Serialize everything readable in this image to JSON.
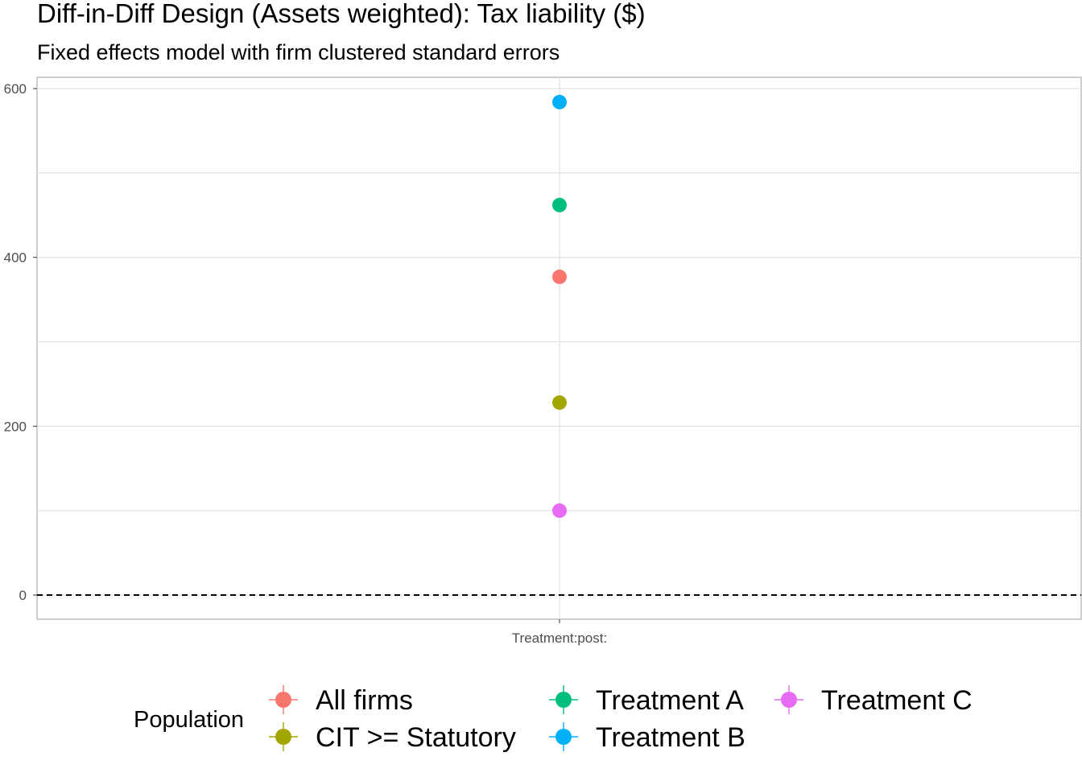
{
  "chart_data": {
    "type": "scatter",
    "title": "Diff-in-Diff Design (Assets weighted): Tax liability  ($)",
    "subtitle": "Fixed effects model with firm clustered standard errors",
    "xlabel": "",
    "ylabel": "",
    "categories": [
      "Treatment:post:"
    ],
    "ylim": [
      -55,
      620
    ],
    "y_ticks": [
      0,
      200,
      400,
      600
    ],
    "reference_line": 0,
    "grid": true,
    "legend": {
      "title": "Population",
      "position": "bottom"
    },
    "series": [
      {
        "name": "All firms",
        "color": "#F8766D",
        "values": [
          377
        ]
      },
      {
        "name": "CIT >= Statutory",
        "color": "#A3A500",
        "values": [
          228
        ]
      },
      {
        "name": "Treatment A",
        "color": "#00BF7D",
        "values": [
          462
        ]
      },
      {
        "name": "Treatment B",
        "color": "#00B0F6",
        "values": [
          584
        ]
      },
      {
        "name": "Treatment C",
        "color": "#E76BF3",
        "values": [
          100
        ]
      }
    ]
  }
}
